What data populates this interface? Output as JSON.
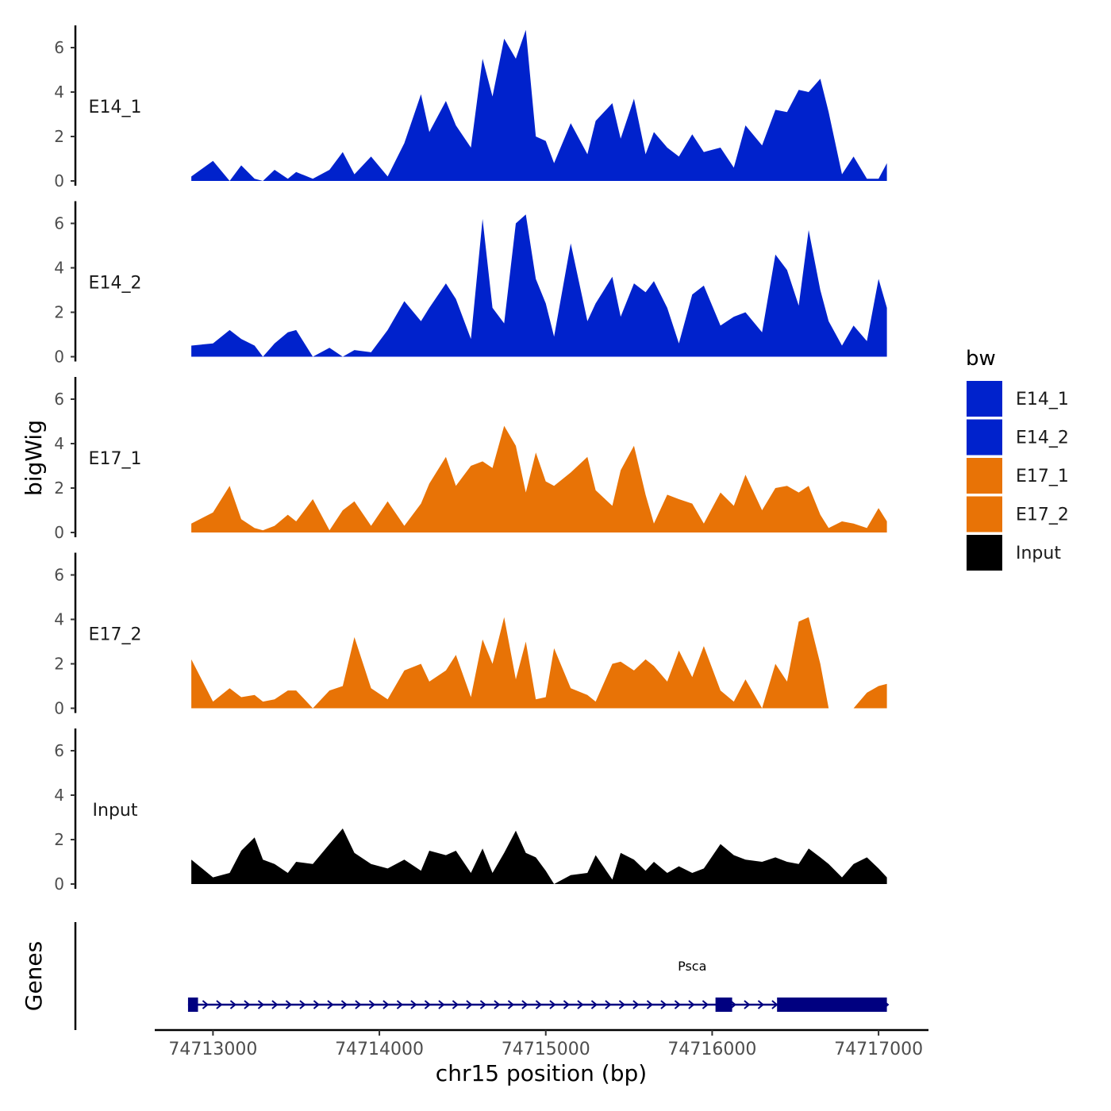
{
  "chart_data": {
    "type": "area",
    "title": "",
    "ylabel": "bigWig",
    "xlabel": "chr15 position (bp)",
    "xlim": [
      74712650,
      74717300
    ],
    "ylim": [
      0,
      7
    ],
    "yticks": [
      0,
      2,
      4,
      6
    ],
    "xticks": [
      74713000,
      74714000,
      74715000,
      74716000,
      74717000
    ],
    "x": [
      74712870,
      74713000,
      74713100,
      74713170,
      74713250,
      74713300,
      74713370,
      74713450,
      74713500,
      74713600,
      74713700,
      74713780,
      74713850,
      74713950,
      74714050,
      74714150,
      74714250,
      74714300,
      74714400,
      74714460,
      74714550,
      74714620,
      74714680,
      74714750,
      74714820,
      74714880,
      74714940,
      74715000,
      74715050,
      74715150,
      74715250,
      74715300,
      74715400,
      74715450,
      74715530,
      74715600,
      74715650,
      74715730,
      74715800,
      74715880,
      74715950,
      74716050,
      74716130,
      74716200,
      74716300,
      74716380,
      74716450,
      74716520,
      74716580,
      74716650,
      74716700,
      74716780,
      74716850,
      74716930,
      74717000,
      74717050
    ],
    "series": [
      {
        "name": "E14_1",
        "color": "#0022cc",
        "values": [
          0.2,
          0.9,
          0.0,
          0.7,
          0.1,
          0.0,
          0.5,
          0.1,
          0.4,
          0.1,
          0.5,
          1.3,
          0.3,
          1.1,
          0.2,
          1.7,
          3.9,
          2.2,
          3.6,
          2.5,
          1.5,
          5.5,
          3.8,
          6.4,
          5.5,
          6.8,
          2.0,
          1.8,
          0.8,
          2.6,
          1.2,
          2.7,
          3.5,
          1.9,
          3.7,
          1.2,
          2.2,
          1.5,
          1.1,
          2.1,
          1.3,
          1.5,
          0.6,
          2.5,
          1.6,
          3.2,
          3.1,
          4.1,
          4.0,
          4.6,
          3.1,
          0.3,
          1.1,
          0.1,
          0.1,
          0.8
        ]
      },
      {
        "name": "E14_2",
        "color": "#0022cc",
        "values": [
          0.5,
          0.6,
          1.2,
          0.8,
          0.5,
          0.0,
          0.6,
          1.1,
          1.2,
          0.0,
          0.4,
          0.0,
          0.3,
          0.2,
          1.2,
          2.5,
          1.6,
          2.2,
          3.3,
          2.6,
          0.8,
          6.2,
          2.2,
          1.5,
          6.0,
          6.4,
          3.5,
          2.4,
          0.9,
          5.1,
          1.6,
          2.4,
          3.6,
          1.8,
          3.3,
          2.9,
          3.4,
          2.2,
          0.6,
          2.8,
          3.2,
          1.4,
          1.8,
          2.0,
          1.1,
          4.6,
          3.9,
          2.3,
          5.7,
          3.0,
          1.6,
          0.5,
          1.4,
          0.7,
          3.5,
          2.2
        ]
      },
      {
        "name": "E17_1",
        "color": "#e87306",
        "values": [
          0.4,
          0.9,
          2.1,
          0.6,
          0.2,
          0.1,
          0.3,
          0.8,
          0.5,
          1.5,
          0.1,
          1.0,
          1.4,
          0.3,
          1.4,
          0.3,
          1.3,
          2.2,
          3.4,
          2.1,
          3.0,
          3.2,
          2.9,
          4.8,
          3.9,
          1.8,
          3.6,
          2.3,
          2.1,
          2.7,
          3.4,
          1.9,
          1.2,
          2.8,
          3.9,
          1.7,
          0.4,
          1.7,
          1.5,
          1.3,
          0.4,
          1.8,
          1.2,
          2.6,
          1.0,
          2.0,
          2.1,
          1.8,
          2.1,
          0.8,
          0.2,
          0.5,
          0.4,
          0.2,
          1.1,
          0.5
        ]
      },
      {
        "name": "E17_2",
        "color": "#e87306",
        "values": [
          2.2,
          0.3,
          0.9,
          0.5,
          0.6,
          0.3,
          0.4,
          0.8,
          0.8,
          0.0,
          0.8,
          1.0,
          3.2,
          0.9,
          0.4,
          1.7,
          2.0,
          1.2,
          1.7,
          2.4,
          0.5,
          3.1,
          2.0,
          4.1,
          1.3,
          3.0,
          0.4,
          0.5,
          2.7,
          0.9,
          0.6,
          0.3,
          2.0,
          2.1,
          1.7,
          2.2,
          1.9,
          1.2,
          2.6,
          1.4,
          2.8,
          0.8,
          0.3,
          1.3,
          0.0,
          2.0,
          1.2,
          3.9,
          4.1,
          2.0,
          0.0,
          0.0,
          0.0,
          0.7,
          1.0,
          1.1
        ]
      },
      {
        "name": "Input",
        "color": "#000000",
        "values": [
          1.1,
          0.3,
          0.5,
          1.5,
          2.1,
          1.1,
          0.9,
          0.5,
          1.0,
          0.9,
          1.8,
          2.5,
          1.4,
          0.9,
          0.7,
          1.1,
          0.6,
          1.5,
          1.3,
          1.5,
          0.5,
          1.6,
          0.5,
          1.4,
          2.4,
          1.4,
          1.2,
          0.6,
          0.0,
          0.4,
          0.5,
          1.3,
          0.2,
          1.4,
          1.1,
          0.6,
          1.0,
          0.5,
          0.8,
          0.5,
          0.7,
          1.8,
          1.3,
          1.1,
          1.0,
          1.2,
          1.0,
          0.9,
          1.6,
          1.2,
          0.9,
          0.3,
          0.9,
          1.2,
          0.7,
          0.3
        ]
      }
    ],
    "legend": {
      "title": "bw",
      "position": "right",
      "entries": [
        "E14_1",
        "E14_2",
        "E17_1",
        "E17_2",
        "Input"
      ]
    },
    "genes_track": {
      "title": "Genes",
      "color": "#000080",
      "genes": [
        {
          "name": "Psca",
          "strand": "+",
          "start": 74712850,
          "end": 74717050,
          "exons": [
            [
              74712850,
              74712910
            ],
            [
              74716020,
              74716120
            ],
            [
              74716390,
              74717050
            ]
          ]
        }
      ]
    }
  }
}
